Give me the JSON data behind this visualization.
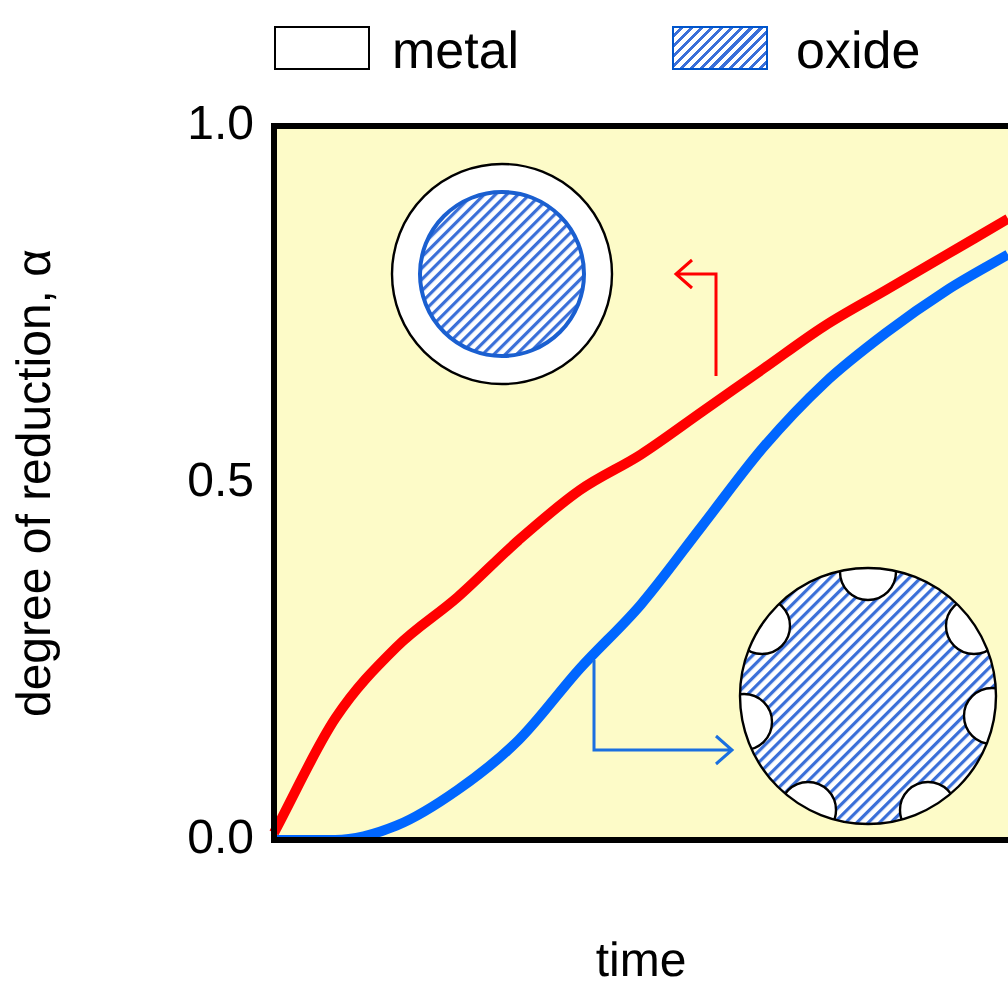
{
  "chart_data": {
    "type": "line",
    "xlabel": "time",
    "ylabel": "degree of reduction, α",
    "categories": [
      null,
      null,
      null,
      null,
      null,
      null,
      null,
      null,
      null,
      null,
      null,
      null,
      null
    ],
    "series": [
      {
        "color": "#ff0000",
        "values": [
          0.01,
          0.17,
          0.27,
          0.34,
          0.42,
          0.49,
          0.54,
          0.6,
          0.66,
          0.72,
          0.77,
          0.82,
          0.87
        ]
      },
      {
        "color": "#0066ff",
        "values": [
          0,
          0,
          0.02,
          0.07,
          0.14,
          0.24,
          0.33,
          0.44,
          0.55,
          0.64,
          0.71,
          0.77,
          0.82
        ]
      }
    ],
    "ylim": [
      0,
      1
    ],
    "yticks": [
      {
        "value": 0,
        "label": "0.0"
      },
      {
        "value": 0.5,
        "label": "0.5"
      },
      {
        "value": 1,
        "label": "1.0"
      }
    ],
    "tick_labels": "y",
    "grid": false,
    "legend": false,
    "marker": "none",
    "line_style": "solid",
    "annotations": [
      "metal",
      "oxide"
    ]
  }
}
